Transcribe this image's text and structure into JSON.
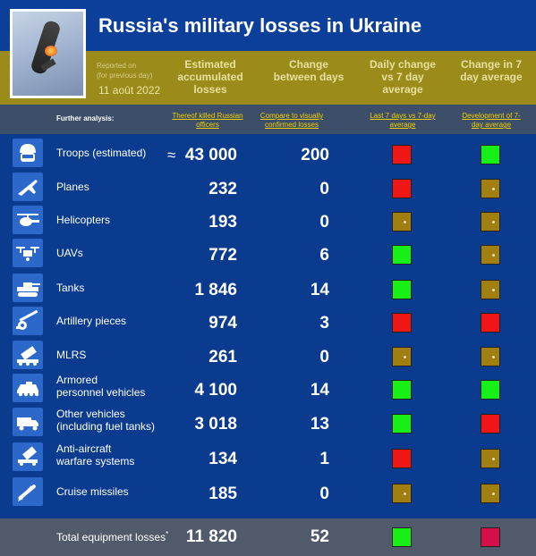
{
  "title": "Russia's military losses in Ukraine",
  "header": {
    "reported_on": "Reported on",
    "for_previous_day": "(for previous day)",
    "date": "11 août 2022",
    "col_estimated": "Estimated accumulated losses",
    "col_change": "Change between days",
    "col_daily": "Daily change vs 7 day average",
    "col_change7": "Change in 7 day average"
  },
  "further": {
    "label": "Further analysis:",
    "link_officers": "Thereof killed Russian officers",
    "link_compare": "Compare to visually confirmed losses",
    "link_last7": "Last 7 days vs 7-day average",
    "link_development": "Development of 7-day average"
  },
  "rows": [
    {
      "icon": "soldier-helmet-icon",
      "name": "Troops (estimated)",
      "approx": "≈",
      "value": "43 000",
      "change": "200",
      "daily": "red",
      "avg": "green"
    },
    {
      "icon": "fighter-plane-icon",
      "name": "Planes",
      "value": "232",
      "change": "0",
      "daily": "red",
      "avg": "neutral"
    },
    {
      "icon": "helicopter-icon",
      "name": "Helicopters",
      "value": "193",
      "change": "0",
      "daily": "neutral",
      "avg": "neutral"
    },
    {
      "icon": "drone-icon",
      "name": "UAVs",
      "value": "772",
      "change": "6",
      "daily": "green",
      "avg": "neutral"
    },
    {
      "icon": "tank-icon",
      "name": "Tanks",
      "value": "1 846",
      "change": "14",
      "daily": "green",
      "avg": "neutral"
    },
    {
      "icon": "artillery-icon",
      "name": "Artillery pieces",
      "value": "974",
      "change": "3",
      "daily": "red",
      "avg": "red"
    },
    {
      "icon": "mlrs-icon",
      "name": "MLRS",
      "value": "261",
      "change": "0",
      "daily": "neutral",
      "avg": "neutral"
    },
    {
      "icon": "apc-icon",
      "name": "Armored personnel vehicles",
      "name_lines": [
        "Armored",
        "personnel vehicles"
      ],
      "value": "4 100",
      "change": "14",
      "daily": "green",
      "avg": "green"
    },
    {
      "icon": "truck-icon",
      "name": "Other vehicles (including fuel tanks)",
      "name_lines": [
        "Other vehicles",
        "(including fuel tanks)"
      ],
      "value": "3 018",
      "change": "13",
      "daily": "green",
      "avg": "red"
    },
    {
      "icon": "anti-aircraft-icon",
      "name": "Anti-aircraft warfare systems",
      "name_lines": [
        "Anti-aircraft",
        "warfare systems"
      ],
      "value": "134",
      "change": "1",
      "daily": "red",
      "avg": "neutral"
    },
    {
      "icon": "cruise-missile-icon",
      "name": "Cruise missiles",
      "value": "185",
      "change": "0",
      "daily": "neutral",
      "avg": "neutral"
    }
  ],
  "total": {
    "label": "Total equipment losses",
    "footnote_mark": "*",
    "value": "11 820",
    "change": "52",
    "daily": "green",
    "avg": "crimson"
  },
  "colors": {
    "red": "#f01616",
    "green": "#16f016",
    "neutral": "#a17e10",
    "crimson": "#d3104a",
    "header_band": "#9b8b1b",
    "background": "#0b3b8f"
  }
}
